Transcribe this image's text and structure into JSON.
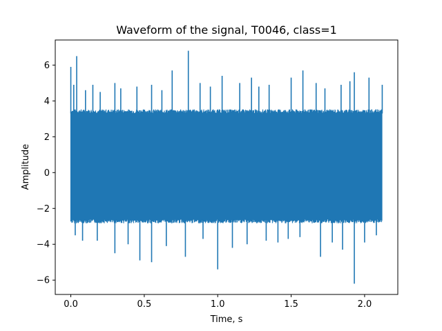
{
  "chart_data": {
    "type": "line",
    "title": "Waveform of the signal, T0046, class=1",
    "xlabel": "Time, s",
    "ylabel": "Amplitude",
    "xlim": [
      -0.106,
      2.226
    ],
    "ylim": [
      -6.8,
      7.4
    ],
    "xticks": [
      0.0,
      0.5,
      1.0,
      1.5,
      2.0
    ],
    "xtick_labels": [
      "0.0",
      "0.5",
      "1.0",
      "1.5",
      "2.0"
    ],
    "yticks": [
      -6,
      -4,
      -2,
      0,
      2,
      4,
      6
    ],
    "ytick_labels": [
      "−6",
      "−4",
      "−2",
      "0",
      "2",
      "4",
      "6"
    ],
    "grid": false,
    "legend": "none",
    "series": [
      {
        "color": "#1f77b4",
        "x_range": [
          0.0,
          2.12
        ],
        "band_upper": 3.3,
        "band_lower": -2.6,
        "peaks": [
          {
            "x": 0.0,
            "y": 5.9
          },
          {
            "x": 0.04,
            "y": 6.5
          },
          {
            "x": 0.02,
            "y": 4.9
          },
          {
            "x": 0.1,
            "y": 4.6
          },
          {
            "x": 0.15,
            "y": 4.9
          },
          {
            "x": 0.2,
            "y": 4.5
          },
          {
            "x": 0.3,
            "y": 5.0
          },
          {
            "x": 0.34,
            "y": 4.7
          },
          {
            "x": 0.45,
            "y": 4.8
          },
          {
            "x": 0.55,
            "y": 4.9
          },
          {
            "x": 0.62,
            "y": 4.6
          },
          {
            "x": 0.69,
            "y": 5.7
          },
          {
            "x": 0.8,
            "y": 6.8
          },
          {
            "x": 0.88,
            "y": 5.0
          },
          {
            "x": 0.95,
            "y": 4.8
          },
          {
            "x": 1.03,
            "y": 5.4
          },
          {
            "x": 1.15,
            "y": 5.0
          },
          {
            "x": 1.23,
            "y": 5.3
          },
          {
            "x": 1.28,
            "y": 4.8
          },
          {
            "x": 1.35,
            "y": 4.9
          },
          {
            "x": 1.5,
            "y": 5.3
          },
          {
            "x": 1.58,
            "y": 5.7
          },
          {
            "x": 1.67,
            "y": 5.0
          },
          {
            "x": 1.73,
            "y": 4.7
          },
          {
            "x": 1.84,
            "y": 4.9
          },
          {
            "x": 1.9,
            "y": 5.1
          },
          {
            "x": 1.93,
            "y": 5.6
          },
          {
            "x": 2.03,
            "y": 5.3
          },
          {
            "x": 2.12,
            "y": 4.9
          }
        ],
        "troughs": [
          {
            "x": 0.03,
            "y": -3.5
          },
          {
            "x": 0.08,
            "y": -3.8
          },
          {
            "x": 0.18,
            "y": -3.8
          },
          {
            "x": 0.3,
            "y": -4.5
          },
          {
            "x": 0.39,
            "y": -4.0
          },
          {
            "x": 0.47,
            "y": -4.9
          },
          {
            "x": 0.55,
            "y": -5.0
          },
          {
            "x": 0.65,
            "y": -4.1
          },
          {
            "x": 0.78,
            "y": -4.7
          },
          {
            "x": 0.9,
            "y": -3.7
          },
          {
            "x": 1.0,
            "y": -5.4
          },
          {
            "x": 1.1,
            "y": -4.2
          },
          {
            "x": 1.2,
            "y": -4.0
          },
          {
            "x": 1.33,
            "y": -3.8
          },
          {
            "x": 1.41,
            "y": -3.9
          },
          {
            "x": 1.48,
            "y": -3.7
          },
          {
            "x": 1.56,
            "y": -3.6
          },
          {
            "x": 1.7,
            "y": -4.7
          },
          {
            "x": 1.78,
            "y": -3.9
          },
          {
            "x": 1.85,
            "y": -4.3
          },
          {
            "x": 1.93,
            "y": -6.2
          },
          {
            "x": 2.0,
            "y": -3.9
          },
          {
            "x": 2.08,
            "y": -3.5
          }
        ]
      }
    ]
  }
}
